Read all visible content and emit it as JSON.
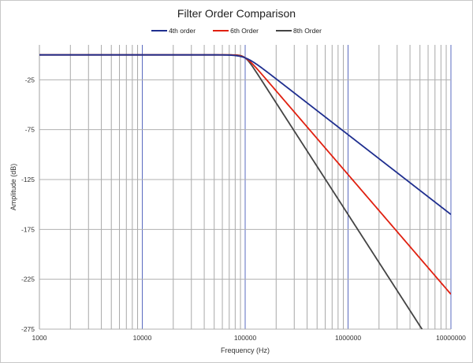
{
  "chart_data": {
    "type": "line",
    "title": "Filter Order Comparison",
    "xlabel": "Frequency (Hz)",
    "ylabel": "Amplitude (dB)",
    "xscale": "log",
    "xlim": [
      1000,
      10000000
    ],
    "ylim": [
      -275,
      10
    ],
    "x_ticks": [
      "1000",
      "10000",
      "100000",
      "1000000",
      "10000000"
    ],
    "y_ticks": [
      "-25",
      "-75",
      "-125",
      "-175",
      "-225",
      "-275"
    ],
    "grid": true,
    "legend_position": "top",
    "cutoff_frequency": 100000,
    "series": [
      {
        "name": "4th order",
        "color": "#1f2f8f",
        "order": 4,
        "x": [
          1000,
          10000,
          100000,
          1000000,
          10000000
        ],
        "values": [
          0,
          0,
          -3,
          -80,
          -160
        ]
      },
      {
        "name": "6th Order",
        "color": "#e02010",
        "order": 6,
        "x": [
          1000,
          10000,
          100000,
          1000000,
          10000000
        ],
        "values": [
          0,
          0,
          -3,
          -120,
          -240
        ]
      },
      {
        "name": "8th Order",
        "color": "#444444",
        "order": 8,
        "x": [
          1000,
          10000,
          100000,
          1000000,
          8800000
        ],
        "values": [
          0,
          0,
          -3,
          -160,
          -275
        ]
      }
    ]
  }
}
